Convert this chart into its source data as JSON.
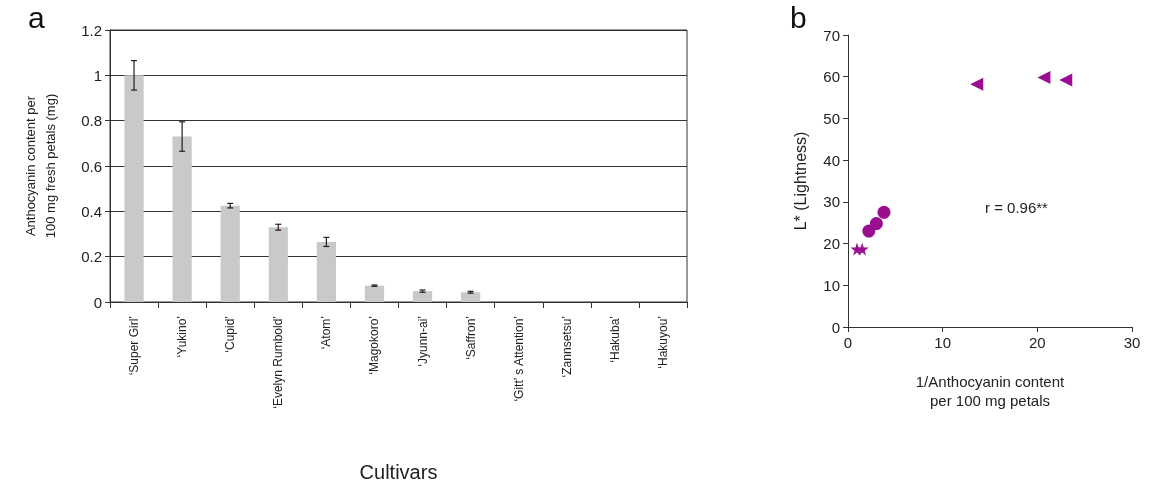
{
  "chart_data": [
    {
      "type": "bar",
      "title": "a",
      "xlabel": "Cultivars",
      "ylabel": "Anthocyanin content per\n100 mg fresh petals (mg)",
      "categories": [
        "‘Super Girl’",
        "‘Yukino’",
        "‘Cupid’",
        "‘Evelyn Rumbold’",
        "‘Atom’",
        "‘Magokoro’",
        "‘Jyunn-ai’",
        "‘Saffron’",
        "‘Gitt’ s Attention’",
        "‘Zannsetsu’",
        "‘Hakuba’",
        "‘Hakuyou’"
      ],
      "values": [
        1.0,
        0.73,
        0.425,
        0.33,
        0.265,
        0.072,
        0.048,
        0.043,
        0,
        0,
        0,
        0
      ],
      "errors": [
        0.065,
        0.065,
        0.01,
        0.013,
        0.02,
        0.003,
        0.005,
        0.004,
        null,
        null,
        null,
        null
      ],
      "color": "#c8cac9",
      "ylim": [
        0,
        1.2
      ],
      "yticks": [
        0,
        0.2,
        0.4,
        0.6,
        0.8,
        1,
        1.2
      ],
      "grid": "y"
    },
    {
      "type": "scatter",
      "title": "b",
      "xlabel": "1/Anthocyanin content\nper 100 mg petals",
      "ylabel": "L* (Lightness)",
      "series": [
        {
          "color": "#990f8f",
          "marker": "star",
          "x": [
            0.95,
            1.5
          ],
          "values": [
            18.7,
            18.7
          ]
        },
        {
          "color": "#990f8f",
          "marker": "circle",
          "x": [
            2.2,
            3.0,
            3.8
          ],
          "values": [
            23.0,
            24.8,
            27.5
          ]
        },
        {
          "color": "#990f8f",
          "marker": "triangle",
          "x": [
            13.6,
            20.7,
            23.0
          ],
          "values": [
            58.2,
            59.8,
            59.2
          ]
        }
      ],
      "xlim": [
        0,
        30
      ],
      "xticks": [
        0,
        10,
        20,
        30
      ],
      "ylim": [
        0,
        70
      ],
      "yticks": [
        0,
        10,
        20,
        30,
        40,
        50,
        60,
        70
      ],
      "annotations": [
        "r = 0.96**"
      ]
    }
  ]
}
